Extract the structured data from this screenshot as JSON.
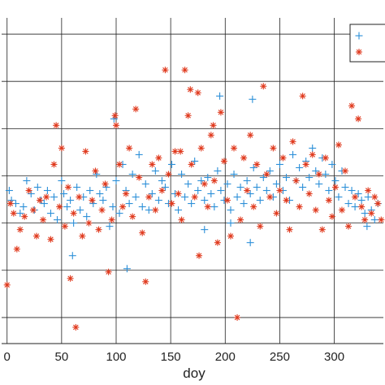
{
  "chart_data": {
    "type": "scatter",
    "title": "",
    "xlabel": "doy",
    "ylabel": "",
    "xlim": [
      -5,
      345
    ],
    "ylim": [
      0,
      1
    ],
    "x_ticks": [
      0,
      50,
      100,
      150,
      200,
      250,
      300
    ],
    "x_tick_labels": [
      "0",
      "50",
      "100",
      "150",
      "200",
      "250",
      "300"
    ],
    "y_gridlines": [
      0.08,
      0.225,
      0.37,
      0.515,
      0.66,
      0.805,
      0.95
    ],
    "grid": true,
    "legend": {
      "placement": "top-right",
      "entries": [
        "+",
        "*"
      ]
    },
    "series": [
      {
        "marker": "plus",
        "color": "#2b8fd8",
        "points": [
          [
            2,
            0.47
          ],
          [
            4,
            0.44
          ],
          [
            8,
            0.43
          ],
          [
            12,
            0.4
          ],
          [
            15,
            0.42
          ],
          [
            18,
            0.5
          ],
          [
            22,
            0.46
          ],
          [
            25,
            0.41
          ],
          [
            28,
            0.48
          ],
          [
            31,
            0.44
          ],
          [
            34,
            0.43
          ],
          [
            37,
            0.47
          ],
          [
            40,
            0.4
          ],
          [
            43,
            0.45
          ],
          [
            46,
            0.38
          ],
          [
            50,
            0.5
          ],
          [
            52,
            0.46
          ],
          [
            55,
            0.42
          ],
          [
            58,
            0.44
          ],
          [
            61,
            0.37
          ],
          [
            64,
            0.48
          ],
          [
            67,
            0.41
          ],
          [
            70,
            0.45
          ],
          [
            73,
            0.39
          ],
          [
            76,
            0.47
          ],
          [
            79,
            0.43
          ],
          [
            82,
            0.52
          ],
          [
            85,
            0.46
          ],
          [
            88,
            0.44
          ],
          [
            91,
            0.48
          ],
          [
            94,
            0.36
          ],
          [
            97,
            0.42
          ],
          [
            98,
            0.69
          ],
          [
            100,
            0.5
          ],
          [
            103,
            0.4
          ],
          [
            106,
            0.55
          ],
          [
            109,
            0.47
          ],
          [
            112,
            0.43
          ],
          [
            115,
            0.52
          ],
          [
            118,
            0.45
          ],
          [
            121,
            0.58
          ],
          [
            124,
            0.42
          ],
          [
            127,
            0.49
          ],
          [
            130,
            0.41
          ],
          [
            133,
            0.46
          ],
          [
            136,
            0.53
          ],
          [
            139,
            0.44
          ],
          [
            142,
            0.5
          ],
          [
            145,
            0.48
          ],
          [
            148,
            0.43
          ],
          [
            151,
            0.55
          ],
          [
            154,
            0.46
          ],
          [
            157,
            0.41
          ],
          [
            160,
            0.52
          ],
          [
            163,
            0.45
          ],
          [
            166,
            0.49
          ],
          [
            169,
            0.43
          ],
          [
            172,
            0.56
          ],
          [
            175,
            0.47
          ],
          [
            178,
            0.5
          ],
          [
            181,
            0.44
          ],
          [
            184,
            0.51
          ],
          [
            187,
            0.46
          ],
          [
            190,
            0.42
          ],
          [
            193,
            0.53
          ],
          [
            196,
            0.47
          ],
          [
            199,
            0.44
          ],
          [
            202,
            0.49
          ],
          [
            205,
            0.41
          ],
          [
            208,
            0.52
          ],
          [
            211,
            0.45
          ],
          [
            214,
            0.48
          ],
          [
            217,
            0.43
          ],
          [
            220,
            0.5
          ],
          [
            223,
            0.46
          ],
          [
            226,
            0.54
          ],
          [
            229,
            0.48
          ],
          [
            232,
            0.44
          ],
          [
            235,
            0.51
          ],
          [
            238,
            0.47
          ],
          [
            241,
            0.53
          ],
          [
            244,
            0.45
          ],
          [
            247,
            0.49
          ],
          [
            250,
            0.55
          ],
          [
            253,
            0.47
          ],
          [
            256,
            0.51
          ],
          [
            259,
            0.44
          ],
          [
            262,
            0.58
          ],
          [
            265,
            0.5
          ],
          [
            268,
            0.54
          ],
          [
            271,
            0.48
          ],
          [
            274,
            0.56
          ],
          [
            277,
            0.51
          ],
          [
            280,
            0.6
          ],
          [
            283,
            0.53
          ],
          [
            286,
            0.49
          ],
          [
            289,
            0.57
          ],
          [
            292,
            0.52
          ],
          [
            295,
            0.47
          ],
          [
            298,
            0.55
          ],
          [
            301,
            0.5
          ],
          [
            304,
            0.45
          ],
          [
            307,
            0.53
          ],
          [
            310,
            0.48
          ],
          [
            313,
            0.43
          ],
          [
            316,
            0.47
          ],
          [
            319,
            0.42
          ],
          [
            322,
            0.46
          ],
          [
            325,
            0.44
          ],
          [
            328,
            0.4
          ],
          [
            331,
            0.45
          ],
          [
            334,
            0.41
          ],
          [
            337,
            0.38
          ],
          [
            340,
            0.43
          ],
          [
            60,
            0.27
          ],
          [
            110,
            0.23
          ],
          [
            181,
            0.35
          ],
          [
            205,
            0.37
          ],
          [
            223,
            0.31
          ],
          [
            195,
            0.76
          ],
          [
            225,
            0.75
          ],
          [
            330,
            0.36
          ]
        ]
      },
      {
        "marker": "asterisk",
        "color": "#e03a1e",
        "points": [
          [
            0,
            0.18
          ],
          [
            3,
            0.43
          ],
          [
            6,
            0.4
          ],
          [
            9,
            0.29
          ],
          [
            12,
            0.35
          ],
          [
            16,
            0.39
          ],
          [
            20,
            0.47
          ],
          [
            24,
            0.41
          ],
          [
            27,
            0.33
          ],
          [
            30,
            0.44
          ],
          [
            33,
            0.38
          ],
          [
            36,
            0.45
          ],
          [
            40,
            0.32
          ],
          [
            43,
            0.55
          ],
          [
            45,
            0.67
          ],
          [
            48,
            0.42
          ],
          [
            50,
            0.6
          ],
          [
            53,
            0.36
          ],
          [
            56,
            0.48
          ],
          [
            58,
            0.2
          ],
          [
            61,
            0.4
          ],
          [
            63,
            0.05
          ],
          [
            66,
            0.45
          ],
          [
            69,
            0.33
          ],
          [
            72,
            0.59
          ],
          [
            75,
            0.37
          ],
          [
            78,
            0.44
          ],
          [
            81,
            0.53
          ],
          [
            84,
            0.35
          ],
          [
            87,
            0.41
          ],
          [
            90,
            0.49
          ],
          [
            93,
            0.22
          ],
          [
            96,
            0.38
          ],
          [
            99,
            0.7
          ],
          [
            100,
            0.67
          ],
          [
            103,
            0.55
          ],
          [
            106,
            0.42
          ],
          [
            109,
            0.46
          ],
          [
            112,
            0.6
          ],
          [
            115,
            0.39
          ],
          [
            118,
            0.72
          ],
          [
            121,
            0.51
          ],
          [
            124,
            0.34
          ],
          [
            127,
            0.19
          ],
          [
            130,
            0.45
          ],
          [
            133,
            0.55
          ],
          [
            136,
            0.41
          ],
          [
            139,
            0.57
          ],
          [
            142,
            0.47
          ],
          [
            145,
            0.84
          ],
          [
            148,
            0.52
          ],
          [
            151,
            0.43
          ],
          [
            154,
            0.59
          ],
          [
            157,
            0.46
          ],
          [
            160,
            0.38
          ],
          [
            163,
            0.84
          ],
          [
            166,
            0.7
          ],
          [
            169,
            0.55
          ],
          [
            172,
            0.45
          ],
          [
            175,
            0.77
          ],
          [
            178,
            0.6
          ],
          [
            181,
            0.49
          ],
          [
            184,
            0.42
          ],
          [
            187,
            0.64
          ],
          [
            190,
            0.5
          ],
          [
            193,
            0.31
          ],
          [
            196,
            0.71
          ],
          [
            199,
            0.56
          ],
          [
            202,
            0.44
          ],
          [
            205,
            0.33
          ],
          [
            208,
            0.6
          ],
          [
            211,
            0.08
          ],
          [
            214,
            0.38
          ],
          [
            217,
            0.57
          ],
          [
            220,
            0.47
          ],
          [
            223,
            0.64
          ],
          [
            226,
            0.42
          ],
          [
            229,
            0.55
          ],
          [
            232,
            0.36
          ],
          [
            235,
            0.79
          ],
          [
            238,
            0.52
          ],
          [
            241,
            0.45
          ],
          [
            244,
            0.6
          ],
          [
            247,
            0.4
          ],
          [
            250,
            0.47
          ],
          [
            253,
            0.57
          ],
          [
            256,
            0.44
          ],
          [
            259,
            0.35
          ],
          [
            262,
            0.62
          ],
          [
            265,
            0.5
          ],
          [
            268,
            0.42
          ],
          [
            271,
            0.76
          ],
          [
            274,
            0.55
          ],
          [
            277,
            0.46
          ],
          [
            280,
            0.58
          ],
          [
            283,
            0.41
          ],
          [
            286,
            0.52
          ],
          [
            289,
            0.35
          ],
          [
            292,
            0.57
          ],
          [
            295,
            0.44
          ],
          [
            298,
            0.39
          ],
          [
            301,
            0.48
          ],
          [
            304,
            0.61
          ],
          [
            307,
            0.41
          ],
          [
            310,
            0.53
          ],
          [
            313,
            0.36
          ],
          [
            316,
            0.73
          ],
          [
            319,
            0.45
          ],
          [
            322,
            0.69
          ],
          [
            325,
            0.42
          ],
          [
            328,
            0.38
          ],
          [
            331,
            0.47
          ],
          [
            334,
            0.4
          ],
          [
            337,
            0.45
          ],
          [
            340,
            0.43
          ],
          [
            343,
            0.38
          ],
          [
            159,
            0.59
          ],
          [
            168,
            0.78
          ],
          [
            176,
            0.27
          ],
          [
            189,
            0.67
          ]
        ]
      }
    ]
  }
}
